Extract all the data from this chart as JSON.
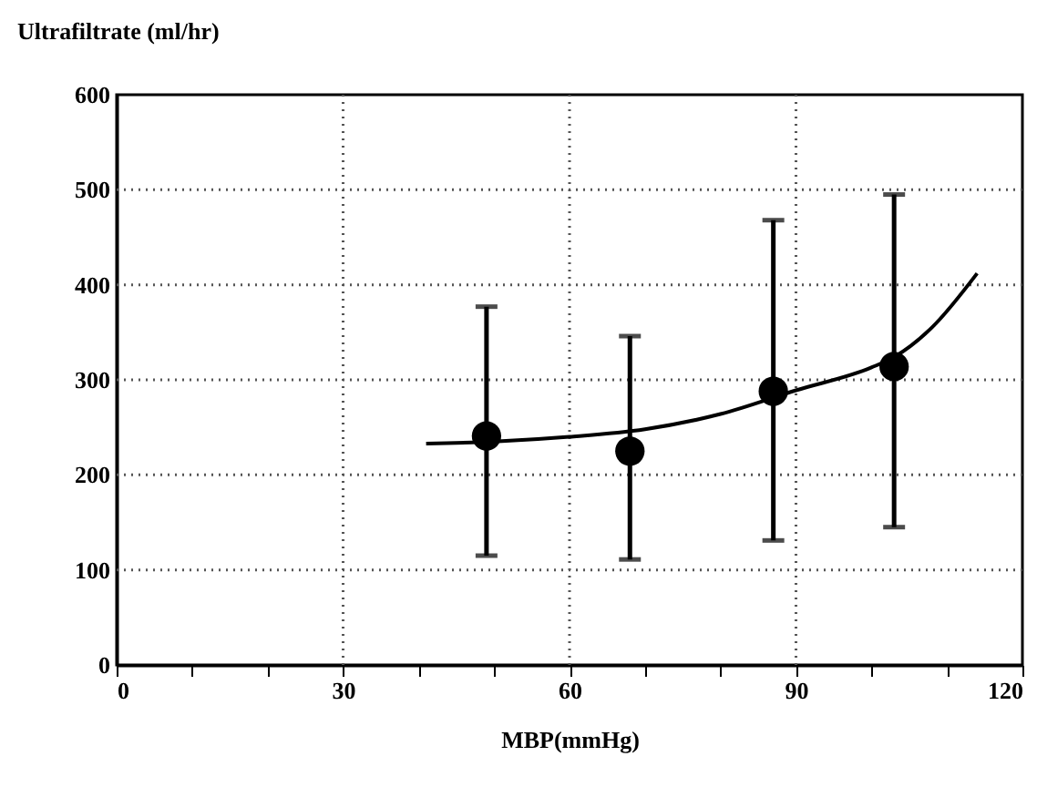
{
  "chart_data": {
    "type": "scatter",
    "xlabel": "MBP(mmHg)",
    "ylabel": "Ultrafiltrate  (ml/hr)",
    "xlim": [
      0,
      120
    ],
    "ylim": [
      0,
      600
    ],
    "xticks": [
      0,
      {
        "value": 10,
        "label": null
      },
      {
        "value": 20,
        "label": null
      },
      30,
      {
        "value": 40,
        "label": null
      },
      {
        "value": 50,
        "label": null
      },
      60,
      {
        "value": 70,
        "label": null
      },
      {
        "value": 80,
        "label": null
      },
      90,
      {
        "value": 100,
        "label": null
      },
      {
        "value": 110,
        "label": null
      },
      120
    ],
    "yticks": [
      0,
      100,
      200,
      300,
      400,
      500,
      600
    ],
    "grid": true,
    "marker": "circle",
    "series": [
      {
        "color": "#000000",
        "x": [
          49,
          68,
          87,
          103
        ],
        "values": [
          241,
          225,
          288,
          314
        ],
        "errors": [
          [
            115,
            377
          ],
          [
            111,
            346
          ],
          [
            131,
            468
          ],
          [
            145,
            495
          ]
        ]
      },
      {
        "type": "line",
        "color": "#000000",
        "marker": "none",
        "line_style": "solid",
        "x": [
          41,
          50,
          60,
          70,
          80,
          90,
          100,
          103,
          108,
          114
        ],
        "values": [
          233,
          235,
          240,
          248,
          264,
          289,
          313,
          324,
          355,
          412
        ]
      }
    ]
  }
}
